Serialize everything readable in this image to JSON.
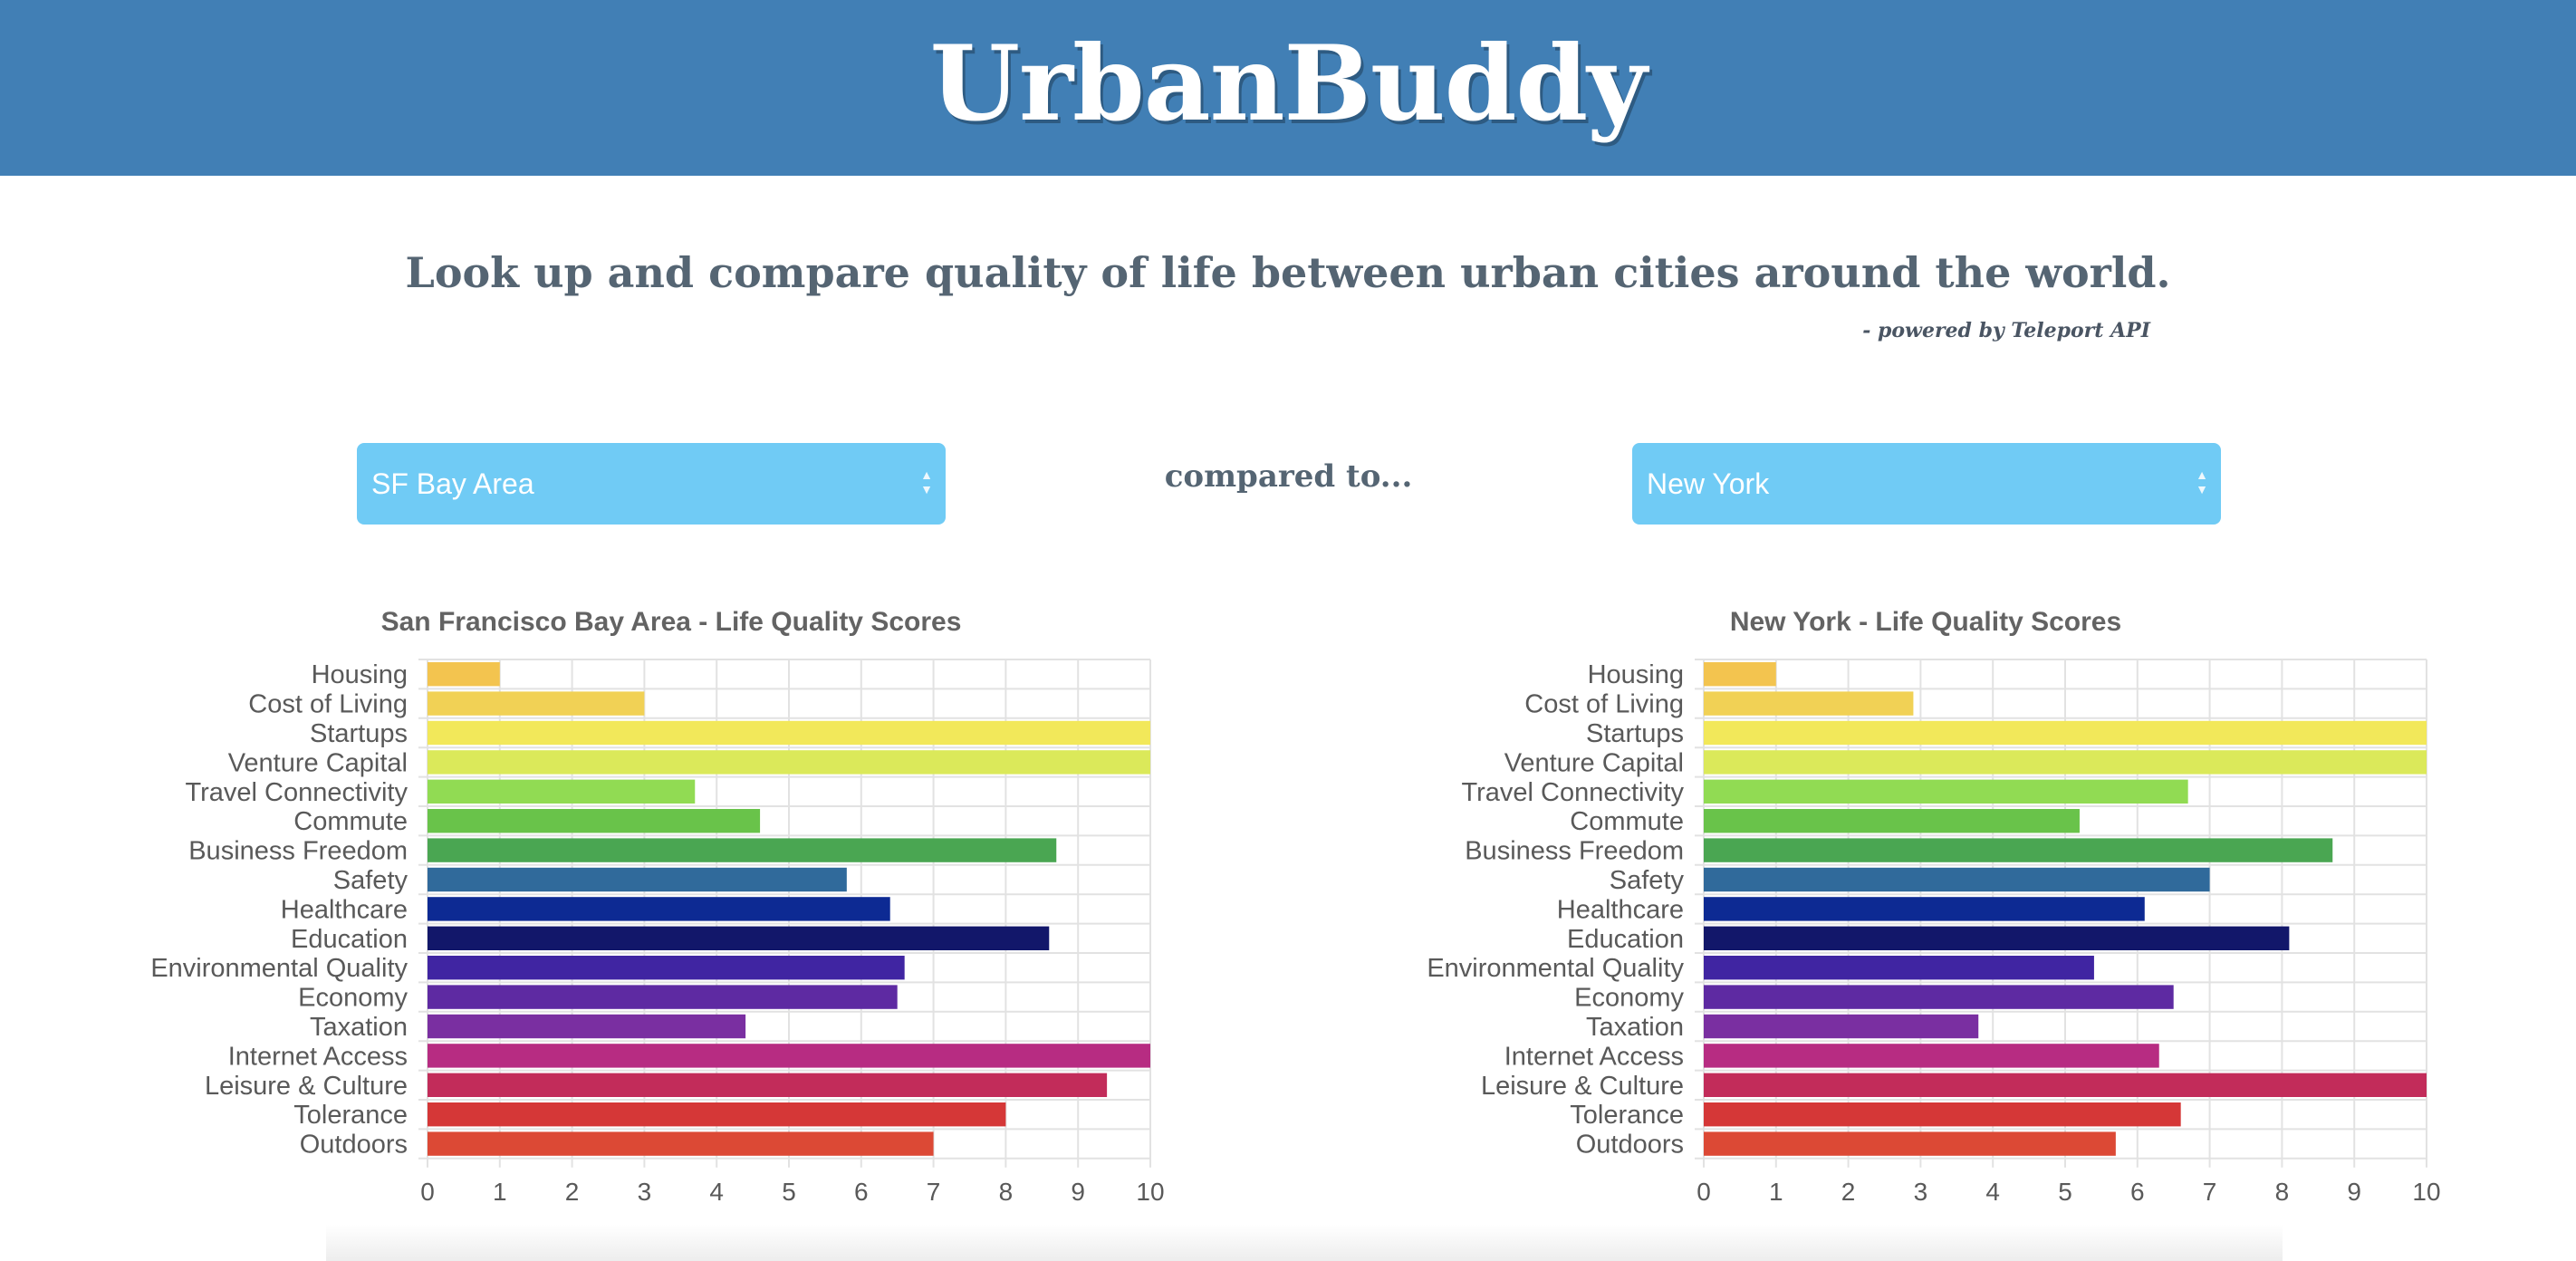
{
  "header": {
    "logo": "UrbanBuddy"
  },
  "intro": {
    "subtitle": "Look up and compare quality of life between urban cities around the world.",
    "powered": "- powered by Teleport API"
  },
  "compare": {
    "left_select": {
      "value": "SF Bay Area"
    },
    "middle_label": "compared to...",
    "right_select": {
      "value": "New York"
    }
  },
  "colors": {
    "header": "#417fb5",
    "select": "#70cbf5",
    "categories": [
      "#f3c44f",
      "#f1d155",
      "#f2e85a",
      "#dbe95a",
      "#91db53",
      "#69c34a",
      "#4aa652",
      "#306a9b",
      "#0d2a93",
      "#12176a",
      "#4025a2",
      "#5e2aa2",
      "#7a2fa1",
      "#b72c82",
      "#c22c5a",
      "#d53737",
      "#dc4935"
    ]
  },
  "chart_data": [
    {
      "type": "bar",
      "title": "San Francisco Bay Area - Life Quality Scores",
      "categories": [
        "Housing",
        "Cost of Living",
        "Startups",
        "Venture Capital",
        "Travel Connectivity",
        "Commute",
        "Business Freedom",
        "Safety",
        "Healthcare",
        "Education",
        "Environmental Quality",
        "Economy",
        "Taxation",
        "Internet Access",
        "Leisure & Culture",
        "Tolerance",
        "Outdoors"
      ],
      "values": [
        1.0,
        3.0,
        10.0,
        10.0,
        3.7,
        4.6,
        8.7,
        5.8,
        6.4,
        8.6,
        6.6,
        6.5,
        4.4,
        10.0,
        9.4,
        8.0,
        7.0
      ],
      "xlim": [
        0,
        10
      ],
      "ticks": [
        "0",
        "1",
        "2",
        "3",
        "4",
        "5",
        "6",
        "7",
        "8",
        "9",
        "10"
      ],
      "orientation": "horizontal",
      "grid": true
    },
    {
      "type": "bar",
      "title": "New York - Life Quality Scores",
      "categories": [
        "Housing",
        "Cost of Living",
        "Startups",
        "Venture Capital",
        "Travel Connectivity",
        "Commute",
        "Business Freedom",
        "Safety",
        "Healthcare",
        "Education",
        "Environmental Quality",
        "Economy",
        "Taxation",
        "Internet Access",
        "Leisure & Culture",
        "Tolerance",
        "Outdoors"
      ],
      "values": [
        1.0,
        2.9,
        10.0,
        10.0,
        6.7,
        5.2,
        8.7,
        7.0,
        6.1,
        8.1,
        5.4,
        6.5,
        3.8,
        6.3,
        10.0,
        6.6,
        5.7
      ],
      "xlim": [
        0,
        10
      ],
      "ticks": [
        "0",
        "1",
        "2",
        "3",
        "4",
        "5",
        "6",
        "7",
        "8",
        "9",
        "10"
      ],
      "orientation": "horizontal",
      "grid": true
    }
  ]
}
